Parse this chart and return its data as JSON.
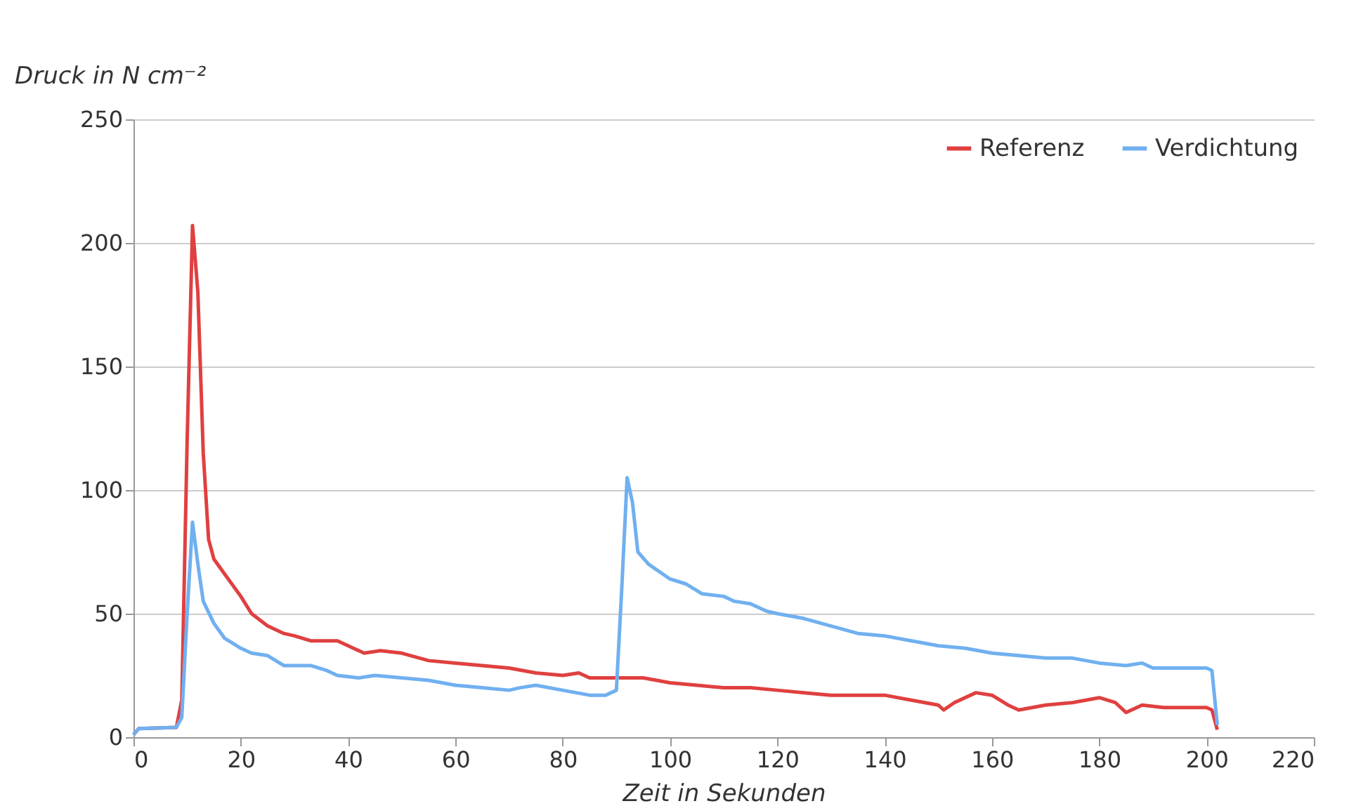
{
  "chart_data": {
    "type": "line",
    "xlabel": "Zeit in Sekunden",
    "ylabel": "Druck in N cm⁻²",
    "xlim": [
      0,
      220
    ],
    "xticks": [
      0,
      20,
      40,
      60,
      80,
      100,
      120,
      140,
      160,
      180,
      200,
      220
    ],
    "ylim": [
      0,
      250
    ],
    "yticks": [
      0,
      50,
      100,
      150,
      200,
      250
    ],
    "grid": "y",
    "legend": "top right",
    "marker": "none",
    "line_style": "solid",
    "series": [
      {
        "name": "Referenz",
        "color": "#e04040",
        "x": [
          0,
          1,
          8,
          9,
          10,
          11,
          12,
          13,
          14,
          15,
          17,
          20,
          22,
          25,
          28,
          30,
          33,
          38,
          40,
          43,
          46,
          50,
          55,
          60,
          65,
          70,
          75,
          80,
          83,
          85,
          90,
          95,
          100,
          105,
          110,
          115,
          120,
          125,
          130,
          140,
          145,
          150,
          151,
          153,
          157,
          160,
          163,
          165,
          170,
          175,
          180,
          183,
          185,
          188,
          192,
          196,
          200,
          201,
          202
        ],
        "values": [
          1,
          3.5,
          4,
          15,
          120,
          207,
          180,
          115,
          80,
          72,
          66,
          57,
          50,
          45,
          42,
          41,
          39,
          39,
          37,
          34,
          35,
          34,
          31,
          30,
          29,
          28,
          26,
          25,
          26,
          24,
          24,
          24,
          22,
          21,
          20,
          20,
          19,
          18,
          17,
          17,
          15,
          13,
          11,
          14,
          18,
          17,
          13,
          11,
          13,
          14,
          16,
          14,
          10,
          13,
          12,
          12,
          12,
          11,
          3
        ]
      },
      {
        "name": "Verdichtung",
        "color": "#70b0f0",
        "x": [
          0,
          1,
          8,
          9,
          10,
          11,
          12,
          13,
          15,
          17,
          20,
          22,
          25,
          28,
          30,
          33,
          36,
          38,
          42,
          45,
          50,
          55,
          60,
          65,
          70,
          72,
          75,
          80,
          85,
          88,
          90,
          91,
          92,
          93,
          94,
          96,
          100,
          103,
          106,
          110,
          112,
          115,
          118,
          120,
          125,
          130,
          135,
          140,
          145,
          150,
          155,
          160,
          165,
          170,
          175,
          180,
          185,
          188,
          190,
          195,
          200,
          201,
          202
        ],
        "values": [
          1,
          3.5,
          4,
          8,
          50,
          87,
          70,
          55,
          46,
          40,
          36,
          34,
          33,
          29,
          29,
          29,
          27,
          25,
          24,
          25,
          24,
          23,
          21,
          20,
          19,
          20,
          21,
          19,
          17,
          17,
          19,
          60,
          105,
          95,
          75,
          70,
          64,
          62,
          58,
          57,
          55,
          54,
          51,
          50,
          48,
          45,
          42,
          41,
          39,
          37,
          36,
          34,
          33,
          32,
          32,
          30,
          29,
          30,
          28,
          28,
          28,
          27,
          5
        ]
      }
    ]
  }
}
